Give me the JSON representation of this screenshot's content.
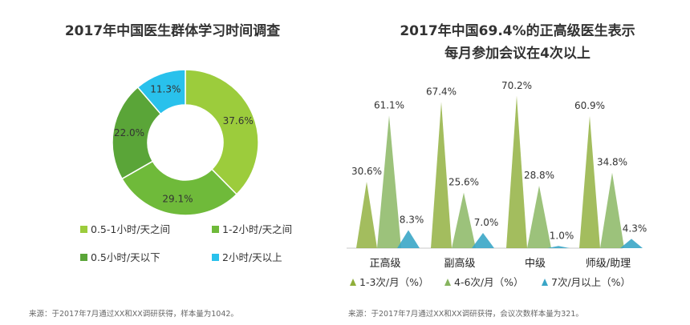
{
  "source_left": "来源：于2017年7月通过XX和XX调研获得，样本量为1042。",
  "source_right": "来源：于2017年7月通过XX和XX调研获得，会议次数样本量为321。",
  "colors": {
    "light_green": "#9ccc3c",
    "green": "#6fba3a",
    "dark_green": "#5aa538",
    "cyan": "#29c1ec",
    "olive": "#8fae3a",
    "sage": "#86b45e",
    "teal": "#3aa6c7"
  },
  "chart_data": [
    {
      "type": "pie",
      "title": "2017年中国医生群体学习时间调查",
      "donut": true,
      "legend_position": "bottom",
      "slices": [
        {
          "name": "0.5-1小时/天之间",
          "value": 37.6,
          "label": "37.6%",
          "color": "#9ccc3c"
        },
        {
          "name": "1-2小时/天之间",
          "value": 29.1,
          "label": "29.1%",
          "color": "#6fba3a"
        },
        {
          "name": "0.5小时/天以下",
          "value": 22.0,
          "label": "22.0%",
          "color": "#5aa538"
        },
        {
          "name": "2小时/天以上",
          "value": 11.3,
          "label": "11.3%",
          "color": "#29c1ec"
        }
      ]
    },
    {
      "type": "bar",
      "mark": "triangle",
      "title_line1": "2017年中国69.4%的正高级医生表示",
      "title_line2": "每月参加会议在4次以上",
      "categories": [
        "正高级",
        "副高级",
        "中级",
        "师级/助理"
      ],
      "ylim": [
        0,
        75
      ],
      "grid": false,
      "legend_position": "bottom",
      "series": [
        {
          "name": "1-3次/月（%）",
          "values": [
            30.6,
            67.4,
            70.2,
            60.9
          ],
          "labels": [
            "30.6%",
            "67.4%",
            "70.2%",
            "60.9%"
          ],
          "color": "#8fae3a"
        },
        {
          "name": "4-6次/月（%）",
          "values": [
            61.1,
            25.6,
            28.8,
            34.8
          ],
          "labels": [
            "61.1%",
            "25.6%",
            "28.8%",
            "34.8%"
          ],
          "color": "#86b45e"
        },
        {
          "name": "7次/月以上（%）",
          "values": [
            8.3,
            7.0,
            1.0,
            4.3
          ],
          "labels": [
            "8.3%",
            "7.0%",
            "1.0%",
            "4.3%"
          ],
          "color": "#3aa6c7"
        }
      ]
    }
  ]
}
